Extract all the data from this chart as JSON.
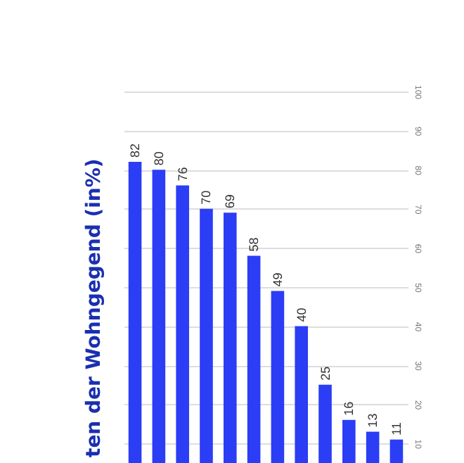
{
  "chart_data": {
    "type": "bar",
    "title": "ten der Wohngegend (in%)",
    "categories": [
      null,
      null,
      null,
      null,
      null,
      null,
      null,
      null,
      null,
      null,
      null,
      null
    ],
    "values": [
      82,
      80,
      76,
      70,
      69,
      58,
      49,
      40,
      25,
      16,
      13,
      11
    ],
    "color": "#2b3df5",
    "ylim": [
      5,
      100
    ],
    "yticks": [
      10,
      20,
      30,
      40,
      50,
      60,
      70,
      80,
      90,
      100
    ],
    "grid": "y",
    "data_labels": true
  }
}
